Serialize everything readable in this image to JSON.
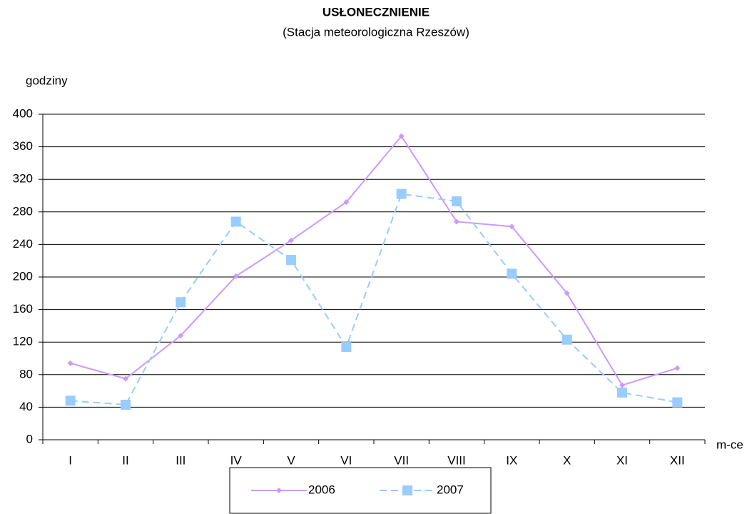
{
  "chart_data": {
    "type": "line",
    "title": "USŁONECZNIENIE",
    "subtitle": "(Stacja meteorologiczna Rzeszów)",
    "y_label": "godziny",
    "x_label": "m-ce",
    "categories": [
      "I",
      "II",
      "III",
      "IV",
      "V",
      "VI",
      "VII",
      "VIII",
      "IX",
      "X",
      "XI",
      "XII"
    ],
    "series": [
      {
        "name": "2006",
        "color": "#cc99ff",
        "values": [
          94,
          75,
          128,
          201,
          245,
          292,
          373,
          268,
          262,
          180,
          67,
          88
        ]
      },
      {
        "name": "2007",
        "color": "#99ccff",
        "values": [
          48,
          43,
          169,
          268,
          221,
          114,
          302,
          293,
          204,
          123,
          58,
          46
        ]
      }
    ],
    "ylim": [
      0,
      400
    ],
    "yticks": [
      0,
      40,
      80,
      120,
      160,
      200,
      240,
      280,
      320,
      360,
      400
    ],
    "grid": true,
    "legend": "bottom"
  }
}
